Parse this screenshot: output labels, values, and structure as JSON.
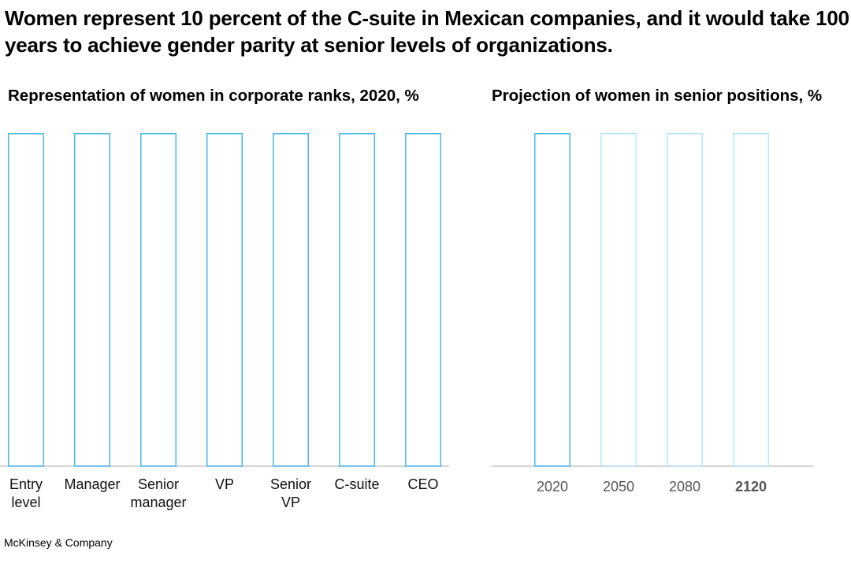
{
  "title": "Women represent 10 percent of the C-suite in Mexican companies, and it would take 100 years to achieve gender parity at senior levels of organizations.",
  "footer": "McKinsey & Company",
  "colors": {
    "bar_outline_primary": "#4ab8ea",
    "bar_outline_light": "#b8e4f8",
    "baseline": "#c8c8c8",
    "label_gray": "#555555"
  },
  "chart_data": [
    {
      "type": "bar",
      "title": "Representation of women in corporate ranks, 2020, %",
      "categories": [
        "Entry level",
        "Manager",
        "Senior manager",
        "VP",
        "Senior VP",
        "C-suite",
        "CEO"
      ],
      "category_lines": [
        [
          "Entry",
          "level"
        ],
        [
          "Manager"
        ],
        [
          "Senior",
          "manager"
        ],
        [
          "VP"
        ],
        [
          "Senior",
          "VP"
        ],
        [
          "C-suite"
        ],
        [
          "CEO"
        ]
      ],
      "frame_values": [
        100,
        100,
        100,
        100,
        100,
        100,
        100
      ],
      "ylim": [
        0,
        100
      ],
      "style": "outline",
      "grid": false
    },
    {
      "type": "bar",
      "title": "Projection of women in senior positions, %",
      "categories": [
        "2020",
        "2050",
        "2080",
        "2120"
      ],
      "highlight": "2120",
      "frame_values": [
        100,
        100,
        100,
        100
      ],
      "ylim": [
        0,
        100
      ],
      "style": "outline",
      "grid": false
    }
  ]
}
